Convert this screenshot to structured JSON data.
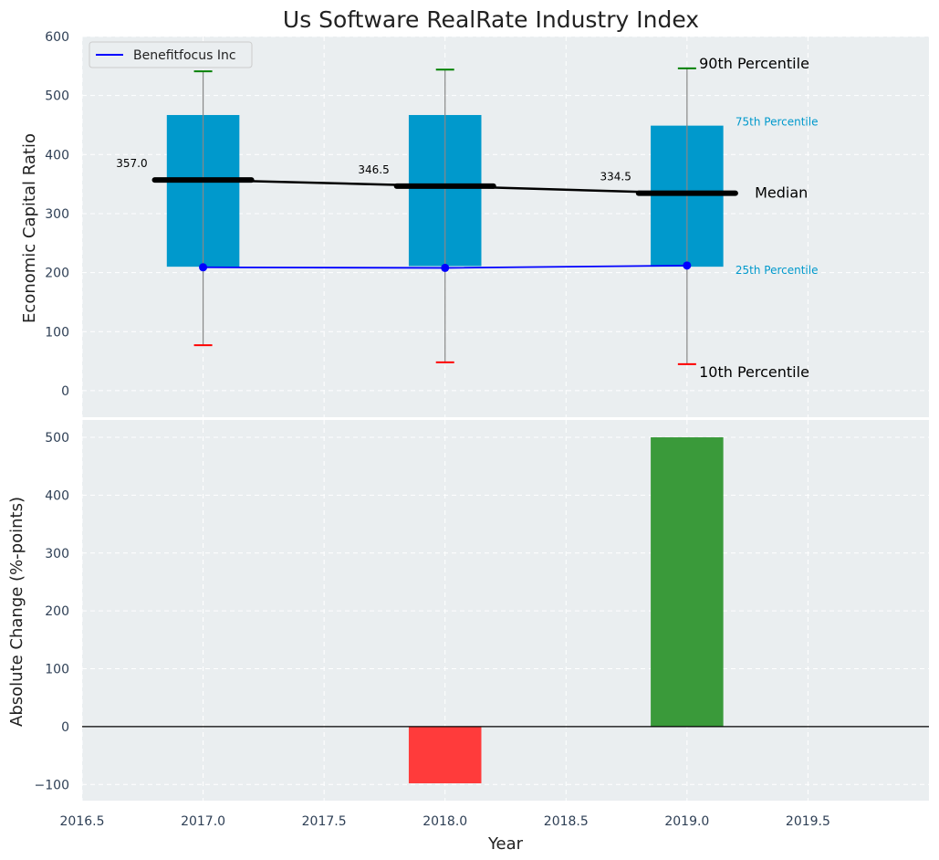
{
  "chart_data": [
    {
      "type": "box",
      "title": "Us Software RealRate Industry Index",
      "ylabel": "Economic Capital Ratio",
      "xlim": [
        2016.5,
        2020.0
      ],
      "ylim": [
        -45,
        600
      ],
      "yticks": [
        0,
        100,
        200,
        300,
        400,
        500,
        600
      ],
      "grid": true,
      "legend": {
        "position": "top-left",
        "entries": [
          "Benefitfocus Inc"
        ]
      },
      "years": [
        2017,
        2018,
        2019
      ],
      "p10": [
        77,
        48,
        45
      ],
      "p25": [
        210,
        211,
        210
      ],
      "median": [
        357.0,
        346.5,
        334.5
      ],
      "median_labels": [
        "357.0",
        "346.5",
        "334.5"
      ],
      "p75": [
        467,
        467,
        449
      ],
      "p90": [
        541,
        544,
        546
      ],
      "series": [
        {
          "name": "Benefitfocus Inc",
          "color": "#0000ff",
          "x": [
            2017,
            2018,
            2019
          ],
          "y": [
            209,
            208,
            212
          ]
        }
      ],
      "annotations": {
        "p90": "90th Percentile",
        "p75": "75th Percentile",
        "median": "Median",
        "p25": "25th Percentile",
        "p10": "10th Percentile"
      },
      "colors": {
        "box": "#0099cc",
        "median": "#000000",
        "p90_whisker": "#008000",
        "p10_whisker": "#ff0000",
        "small_annotation": "#0099cc"
      }
    },
    {
      "type": "bar",
      "xlabel": "Year",
      "ylabel": "Absolute Change (%-points)",
      "xlim": [
        2016.5,
        2020.0
      ],
      "xticks": [
        2016.5,
        2017.0,
        2017.5,
        2018.0,
        2018.5,
        2019.0,
        2019.5
      ],
      "xtick_labels": [
        "2016.5",
        "2017.0",
        "2017.5",
        "2018.0",
        "2018.5",
        "2019.0",
        "2019.5"
      ],
      "ylim": [
        -128,
        530
      ],
      "yticks": [
        -100,
        0,
        100,
        200,
        300,
        400,
        500
      ],
      "ytick_labels": [
        "−100",
        "0",
        "100",
        "200",
        "300",
        "400",
        "500"
      ],
      "grid": true,
      "x": [
        2017,
        2018,
        2019
      ],
      "values": [
        0,
        -98,
        500
      ],
      "colors": {
        "positive": "#3a9a3a",
        "negative": "#ff3b3b"
      }
    }
  ]
}
